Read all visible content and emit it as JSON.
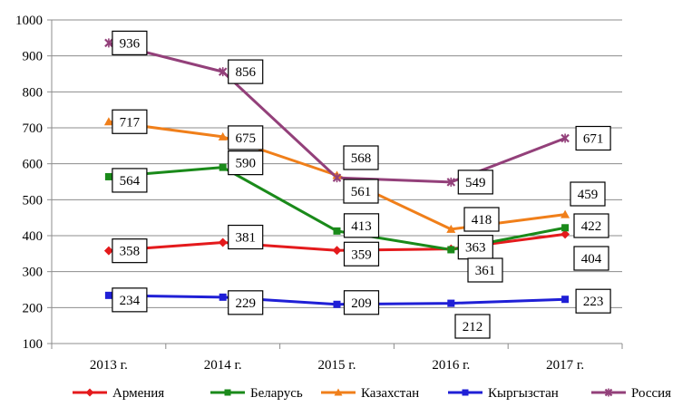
{
  "chart_data": {
    "type": "line",
    "categories": [
      "2013 г.",
      "2014 г.",
      "2015 г.",
      "2016 г.",
      "2017 г."
    ],
    "ylim": [
      100,
      1000
    ],
    "yticks": [
      100,
      200,
      300,
      400,
      500,
      600,
      700,
      800,
      900,
      1000
    ],
    "grid": true,
    "legend_position": "bottom",
    "series": [
      {
        "name": "Армения",
        "color": "#e41a1c",
        "marker": "diamond",
        "values": [
          358,
          381,
          359,
          363,
          404
        ]
      },
      {
        "name": "Беларусь",
        "color": "#1a8a1a",
        "marker": "square",
        "values": [
          564,
          590,
          413,
          361,
          422
        ]
      },
      {
        "name": "Казахстан",
        "color": "#f07f1a",
        "marker": "triangle",
        "values": [
          717,
          675,
          568,
          418,
          459
        ]
      },
      {
        "name": "Кыргызстан",
        "color": "#1f1fd6",
        "marker": "square",
        "values": [
          234,
          229,
          209,
          212,
          223
        ]
      },
      {
        "name": "Россия",
        "color": "#93407a",
        "marker": "star",
        "values": [
          936,
          856,
          561,
          549,
          671
        ]
      }
    ]
  }
}
